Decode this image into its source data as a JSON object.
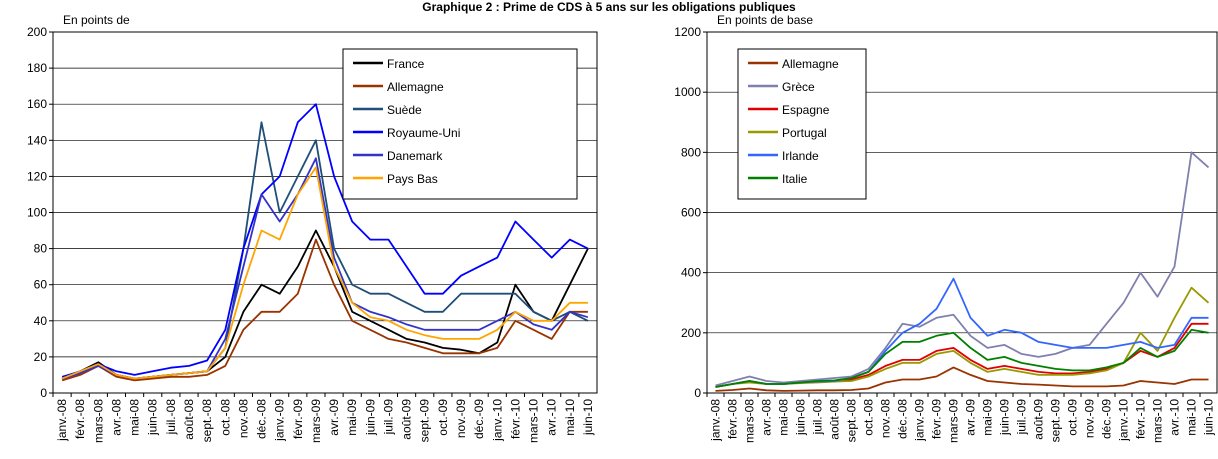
{
  "title": "Graphique 2 : Prime de CDS à 5 ans sur les obligations publiques",
  "chart_data": [
    {
      "type": "line",
      "y_label": "En points de",
      "legend": "upper right",
      "categories": [
        "janv.-08",
        "févr.-08",
        "mars-08",
        "avr.-08",
        "mai-08",
        "juin-08",
        "juil.-08",
        "août-08",
        "sept.-08",
        "oct.-08",
        "nov.-08",
        "déc.-08",
        "janv.-09",
        "févr.-09",
        "mars-09",
        "avr.-09",
        "mai-09",
        "juin-09",
        "juil.-09",
        "août-09",
        "sept.-09",
        "oct.-09",
        "nov.-09",
        "déc.-09",
        "janv.-10",
        "févr.-10",
        "mars-10",
        "avr.-10",
        "mai-10",
        "juin-10"
      ],
      "ylim": [
        0,
        200
      ],
      "yticks": [
        0,
        20,
        40,
        60,
        80,
        100,
        120,
        140,
        160,
        180,
        200
      ],
      "grid": true,
      "series": [
        {
          "name": "France",
          "color": "#000000",
          "values": [
            8,
            12,
            17,
            10,
            8,
            9,
            10,
            11,
            12,
            20,
            45,
            60,
            55,
            70,
            90,
            70,
            45,
            40,
            35,
            30,
            28,
            25,
            24,
            22,
            28,
            60,
            45,
            40,
            60,
            80
          ]
        },
        {
          "name": "Allemagne",
          "color": "#993300",
          "values": [
            7,
            10,
            15,
            9,
            7,
            8,
            9,
            9,
            10,
            15,
            35,
            45,
            45,
            55,
            85,
            60,
            40,
            35,
            30,
            28,
            25,
            22,
            22,
            22,
            25,
            40,
            35,
            30,
            45,
            45
          ]
        },
        {
          "name": "Suède",
          "color": "#1f4e79",
          "values": [
            8,
            12,
            16,
            10,
            8,
            9,
            10,
            11,
            12,
            25,
            80,
            150,
            100,
            120,
            140,
            80,
            60,
            55,
            55,
            50,
            45,
            45,
            55,
            55,
            55,
            55,
            45,
            40,
            45,
            40
          ]
        },
        {
          "name": "Royaume-Uni",
          "color": "#0000ff",
          "values": [
            9,
            12,
            16,
            12,
            10,
            12,
            14,
            15,
            18,
            35,
            80,
            110,
            120,
            150,
            160,
            120,
            95,
            85,
            85,
            70,
            55,
            55,
            65,
            70,
            75,
            95,
            85,
            75,
            85,
            80
          ]
        },
        {
          "name": "Danemark",
          "color": "#3333cc",
          "values": [
            8,
            11,
            15,
            10,
            8,
            9,
            10,
            11,
            12,
            30,
            70,
            110,
            95,
            110,
            130,
            75,
            50,
            45,
            42,
            38,
            35,
            35,
            35,
            35,
            40,
            45,
            38,
            35,
            45,
            42
          ]
        },
        {
          "name": "Pays Bas",
          "color": "#ffa500",
          "values": [
            8,
            12,
            16,
            10,
            8,
            9,
            10,
            11,
            12,
            25,
            60,
            90,
            85,
            110,
            125,
            70,
            50,
            42,
            40,
            35,
            32,
            30,
            30,
            30,
            35,
            45,
            40,
            40,
            50,
            50
          ]
        }
      ]
    },
    {
      "type": "line",
      "y_label": "En points de base",
      "legend": "upper left",
      "categories": [
        "janv.-08",
        "févr.-08",
        "mars-08",
        "avr.-08",
        "mai-08",
        "juin-08",
        "juil.-08",
        "août-08",
        "sept.-08",
        "oct.-08",
        "nov.-08",
        "déc.-08",
        "janv.-09",
        "févr.-09",
        "mars-09",
        "avr.-09",
        "mai-09",
        "juin-09",
        "juil.-09",
        "août-09",
        "sept.-09",
        "oct.-09",
        "nov.-09",
        "déc.-09",
        "janv.-10",
        "févr.-10",
        "mars-10",
        "avr.-10",
        "mai-10",
        "juin-10"
      ],
      "ylim": [
        0,
        1200
      ],
      "yticks": [
        0,
        200,
        400,
        600,
        800,
        1000,
        1200
      ],
      "grid": true,
      "series": [
        {
          "name": "Allemagne",
          "color": "#993300",
          "values": [
            7,
            10,
            15,
            9,
            7,
            8,
            9,
            9,
            10,
            15,
            35,
            45,
            45,
            55,
            85,
            60,
            40,
            35,
            30,
            28,
            25,
            22,
            22,
            22,
            25,
            40,
            35,
            30,
            45,
            45
          ]
        },
        {
          "name": "Grèce",
          "color": "#8080b0",
          "values": [
            25,
            40,
            55,
            40,
            35,
            40,
            45,
            50,
            55,
            80,
            150,
            230,
            220,
            250,
            260,
            190,
            150,
            160,
            130,
            120,
            130,
            150,
            160,
            230,
            300,
            400,
            320,
            420,
            800,
            750
          ]
        },
        {
          "name": "Espagne",
          "color": "#e00000",
          "values": [
            20,
            30,
            40,
            30,
            30,
            35,
            38,
            40,
            45,
            60,
            90,
            110,
            110,
            140,
            150,
            110,
            80,
            90,
            80,
            70,
            65,
            65,
            70,
            80,
            100,
            140,
            120,
            150,
            230,
            230
          ]
        },
        {
          "name": "Portugal",
          "color": "#999900",
          "values": [
            20,
            30,
            35,
            30,
            30,
            33,
            35,
            38,
            40,
            55,
            80,
            100,
            100,
            130,
            140,
            100,
            70,
            80,
            70,
            60,
            60,
            60,
            65,
            75,
            100,
            200,
            140,
            250,
            350,
            300
          ]
        },
        {
          "name": "Irlande",
          "color": "#3366ff",
          "values": [
            20,
            30,
            40,
            30,
            30,
            35,
            38,
            40,
            50,
            70,
            140,
            200,
            230,
            280,
            380,
            250,
            190,
            210,
            200,
            170,
            160,
            150,
            150,
            150,
            160,
            170,
            150,
            160,
            250,
            250
          ]
        },
        {
          "name": "Italie",
          "color": "#008000",
          "values": [
            20,
            30,
            40,
            30,
            30,
            35,
            40,
            42,
            50,
            70,
            130,
            170,
            170,
            190,
            200,
            150,
            110,
            120,
            100,
            90,
            80,
            75,
            75,
            85,
            100,
            150,
            120,
            140,
            210,
            200
          ]
        }
      ]
    }
  ]
}
